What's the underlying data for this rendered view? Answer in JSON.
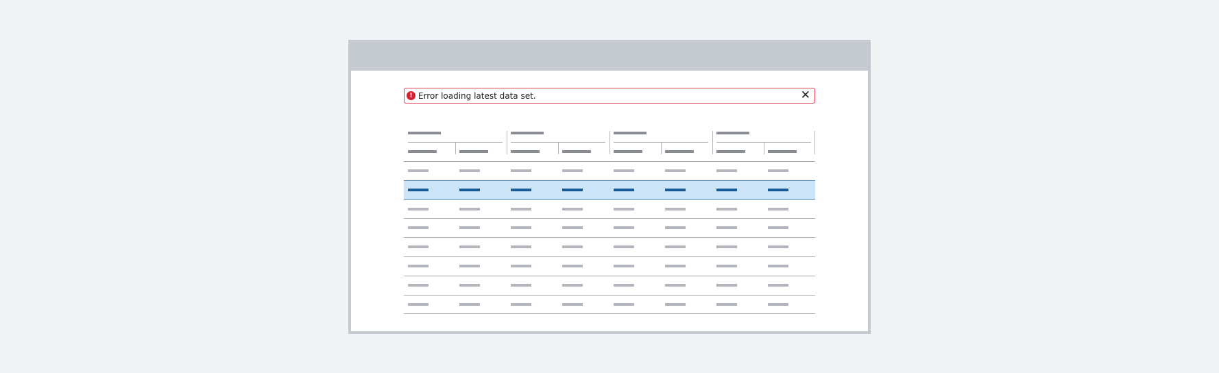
{
  "alert": {
    "message": "Error loading latest data set.",
    "icon": "error-exclamation-icon",
    "close_icon": "close-x-icon",
    "close_glyph": "✕"
  },
  "table": {
    "column_groups": 4,
    "columns_per_group": 2,
    "rows": 8,
    "selected_row": 2
  },
  "colors": {
    "error": "#d81f32",
    "selected_row": "#cce4f7",
    "selected_accent": "#1a5b95",
    "header_bar": "#c5c9d0"
  }
}
